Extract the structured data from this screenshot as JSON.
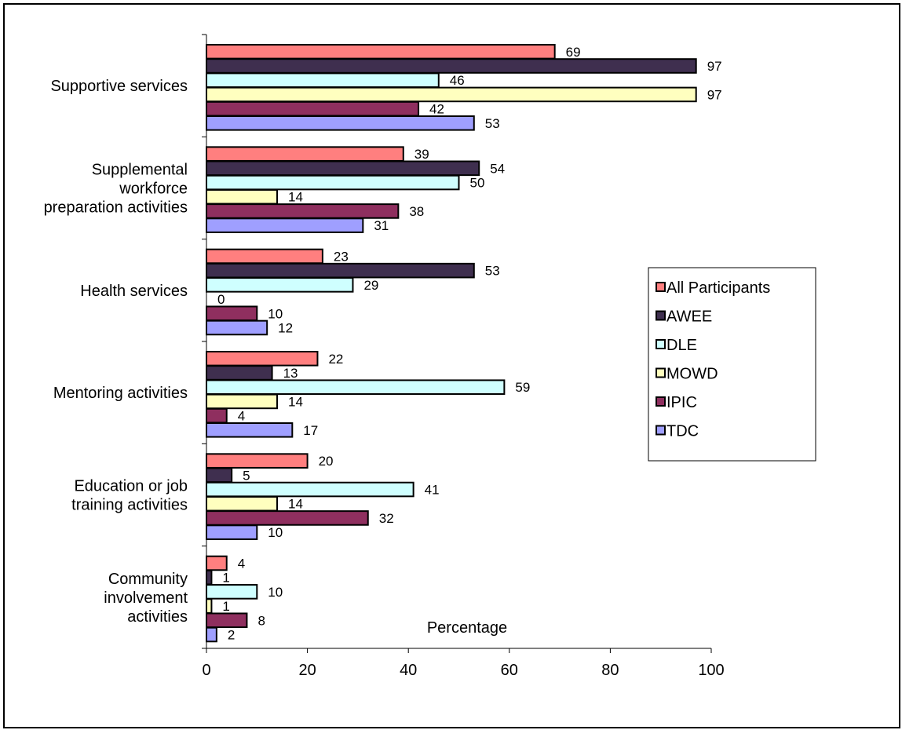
{
  "chart_data": {
    "type": "bar",
    "orientation": "horizontal",
    "categories": [
      "Supportive services",
      "Supplemental workforce preparation activities",
      "Health services",
      "Mentoring activities",
      "Education or job training activities",
      "Community involvement activities"
    ],
    "category_lines": [
      [
        "Supportive services"
      ],
      [
        "Supplemental",
        "workforce",
        "preparation activities"
      ],
      [
        "Health services"
      ],
      [
        "Mentoring activities"
      ],
      [
        "Education or job",
        "training activities"
      ],
      [
        "Community",
        "involvement",
        "activities"
      ]
    ],
    "series": [
      {
        "name": "All Participants",
        "color": "#FF7F7F",
        "values": [
          69,
          39,
          23,
          22,
          20,
          4
        ]
      },
      {
        "name": "AWEE",
        "color": "#3F2F4F",
        "values": [
          97,
          54,
          53,
          13,
          5,
          1
        ]
      },
      {
        "name": "DLE",
        "color": "#CFFFFF",
        "values": [
          46,
          50,
          29,
          59,
          41,
          10
        ]
      },
      {
        "name": "MOWD",
        "color": "#FFFFBF",
        "values": [
          97,
          14,
          0,
          14,
          14,
          1
        ]
      },
      {
        "name": "IPIC",
        "color": "#8F2F5F",
        "values": [
          42,
          38,
          10,
          4,
          32,
          8
        ]
      },
      {
        "name": "TDC",
        "color": "#9F9FFF",
        "values": [
          53,
          31,
          12,
          17,
          10,
          2
        ]
      }
    ],
    "xlabel": "Percentage",
    "ylabel": "",
    "title": "",
    "xlim": [
      0,
      100
    ],
    "xticks": [
      0,
      20,
      40,
      60,
      80,
      100
    ],
    "grid": false,
    "legend_position": "right"
  }
}
